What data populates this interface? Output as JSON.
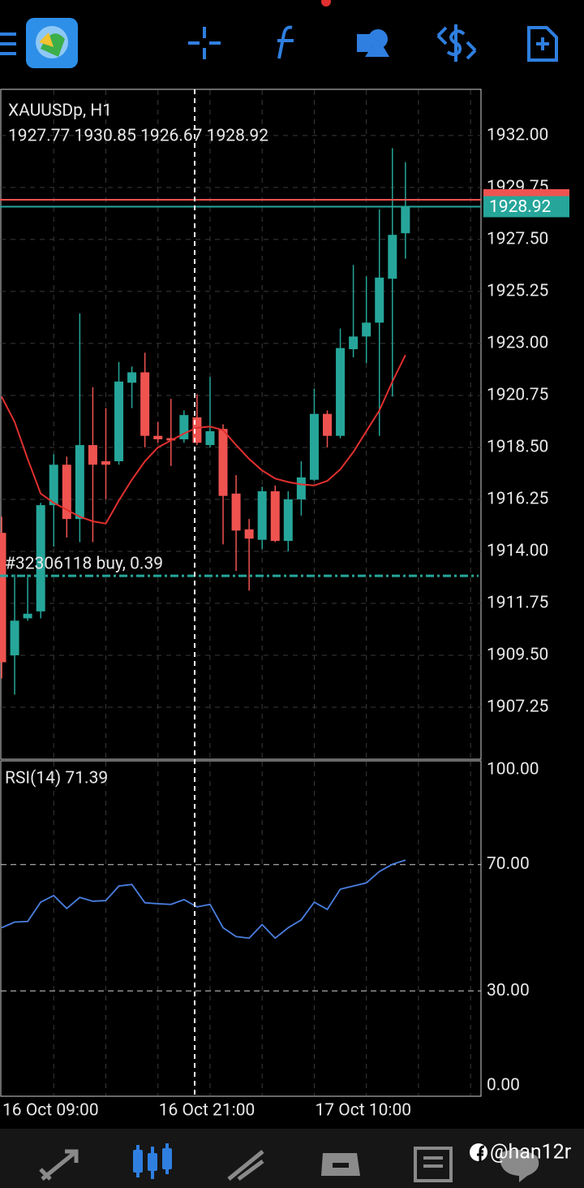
{
  "chart_data": [
    {
      "type": "candlestick",
      "title": "XAUUSDp, H1",
      "subtitle": "1927.77 1930.85 1926.67 1928.92",
      "categories": [
        "16 Oct 09:00",
        null,
        null,
        null,
        null,
        null,
        null,
        null,
        null,
        null,
        null,
        null,
        "16 Oct 21:00",
        null,
        null,
        null,
        null,
        null,
        null,
        null,
        null,
        null,
        null,
        null,
        "17 Oct 10:00",
        null,
        null,
        null,
        null,
        null,
        null,
        null
      ],
      "open": [
        1914.8,
        1909.5,
        1911.1,
        1911.4,
        1916.0,
        1917.75,
        1915.4,
        1918.6,
        1917.9,
        1917.9,
        1921.3,
        1921.75,
        1919.0,
        1918.9,
        1918.85,
        1919.8,
        1918.6,
        1919.3,
        1916.5,
        1914.95,
        1914.5,
        1916.6,
        1914.45,
        1916.25,
        1917.1,
        1919.95,
        1919.0,
        1922.75,
        1923.3,
        1923.9,
        1925.8,
        1927.77
      ],
      "high": [
        1915.5,
        1913.0,
        1913.0,
        1916.1,
        1918.2,
        1918.1,
        1924.3,
        1921.1,
        1920.2,
        1922.2,
        1922.0,
        1922.6,
        1919.6,
        1920.6,
        1920.1,
        1920.8,
        1921.55,
        1919.5,
        1917.3,
        1915.4,
        1916.8,
        1916.85,
        1916.6,
        1917.9,
        1921.05,
        1920.1,
        1923.65,
        1926.4,
        1925.9,
        1928.8,
        1931.45,
        1930.85
      ],
      "low": [
        1908.5,
        1907.8,
        1911.0,
        1911.1,
        1914.2,
        1914.6,
        1914.4,
        1914.4,
        1916.25,
        1917.75,
        1920.2,
        1918.5,
        1918.7,
        1917.7,
        1918.7,
        1918.6,
        1918.5,
        1914.3,
        1913.15,
        1912.3,
        1914.1,
        1914.4,
        1914.0,
        1915.55,
        1917.05,
        1918.5,
        1918.9,
        1922.4,
        1922.15,
        1919.0,
        1920.7,
        1926.67
      ],
      "close": [
        1909.2,
        1911.0,
        1911.3,
        1916.0,
        1917.75,
        1915.4,
        1918.6,
        1917.75,
        1917.75,
        1921.35,
        1921.75,
        1919.0,
        1918.85,
        1918.8,
        1919.9,
        1918.7,
        1919.2,
        1916.4,
        1914.9,
        1914.55,
        1916.6,
        1914.45,
        1916.25,
        1917.2,
        1919.95,
        1919.0,
        1922.8,
        1923.3,
        1923.9,
        1925.85,
        1927.7,
        1928.92
      ],
      "up_color": "#26a69a",
      "down_color": "#ef5350",
      "ma": {
        "color": "#e0302f",
        "values": [
          1920.7,
          1919.6,
          1918.0,
          1916.5,
          1916.1,
          1915.8,
          1915.5,
          1915.3,
          1915.2,
          1916.2,
          1917.1,
          1917.9,
          1918.5,
          1918.8,
          1919.1,
          1919.35,
          1919.4,
          1919.25,
          1918.6,
          1918.0,
          1917.5,
          1917.15,
          1917.0,
          1916.9,
          1916.85,
          1917.05,
          1917.55,
          1918.3,
          1919.2,
          1920.1,
          1921.35,
          1922.5
        ]
      },
      "bid": {
        "value": 1928.92,
        "color": "#26a69a"
      },
      "ask": {
        "value": 1929.22,
        "color": "#ef5350"
      },
      "order": {
        "label": "#32306118 buy, 0.39",
        "value": 1912.94,
        "color": "#26a69a"
      },
      "ylim": [
        1905.0,
        1934.0
      ],
      "yticks": [
        {
          "value": 1907.25,
          "label": "1907.25"
        },
        {
          "value": 1909.5,
          "label": "1909.50"
        },
        {
          "value": 1911.75,
          "label": "1911.75"
        },
        {
          "value": 1914.0,
          "label": "1914.00"
        },
        {
          "value": 1916.25,
          "label": "1916.25"
        },
        {
          "value": 1918.5,
          "label": "1918.50"
        },
        {
          "value": 1920.75,
          "label": "1920.75"
        },
        {
          "value": 1923.0,
          "label": "1923.00"
        },
        {
          "value": 1925.25,
          "label": "1925.25"
        },
        {
          "value": 1927.5,
          "label": "1927.50"
        },
        {
          "value": 1929.75,
          "label": "1929.75"
        },
        {
          "value": 1932.0,
          "label": "1932.00"
        }
      ],
      "grid": true
    },
    {
      "type": "line",
      "title": "RSI(14) 71.39",
      "color": "#4a7fe0",
      "values": [
        50.0,
        51.8,
        52.0,
        58.1,
        60.2,
        56.1,
        59.6,
        58.4,
        58.6,
        63.2,
        63.7,
        57.9,
        57.6,
        57.4,
        58.9,
        56.6,
        57.4,
        50.0,
        47.2,
        46.7,
        51.0,
        46.7,
        50.0,
        52.5,
        58.1,
        55.8,
        62.2,
        63.2,
        64.2,
        67.8,
        70.1,
        71.39
      ],
      "ylim": [
        0,
        100
      ],
      "yticks": [
        {
          "value": 0,
          "label": "0.00"
        },
        {
          "value": 30,
          "label": "30.00"
        },
        {
          "value": 70,
          "label": "70.00"
        },
        {
          "value": 100,
          "label": "100.00"
        }
      ]
    }
  ],
  "watermark": "@han12r"
}
